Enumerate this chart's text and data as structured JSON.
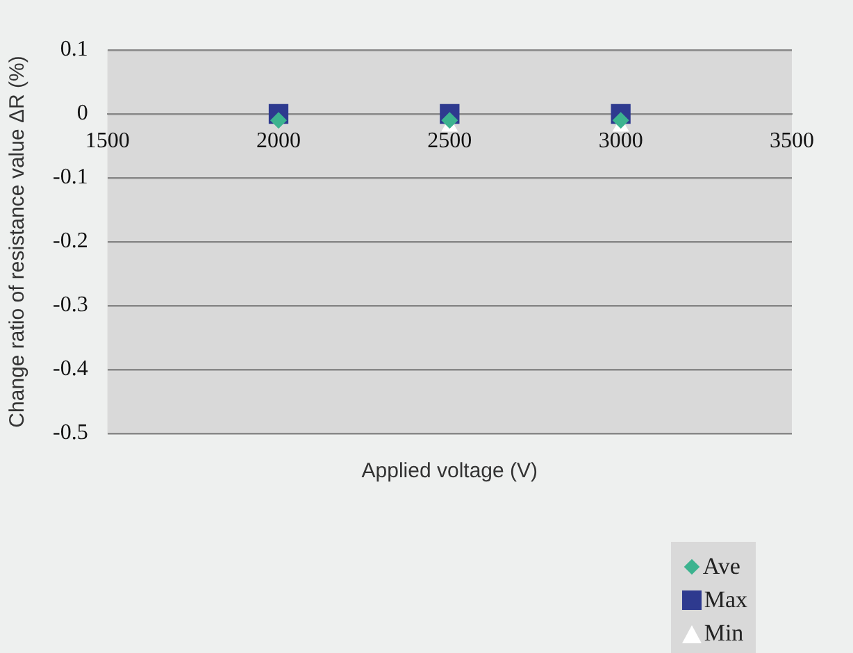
{
  "chart_data": {
    "type": "scatter",
    "xlabel": "Applied voltage (V)",
    "ylabel": "Change ratio of resistance value ΔR (%)",
    "x": [
      2000,
      2500,
      3000
    ],
    "series": [
      {
        "name": "Ave",
        "color": "#3cb38f",
        "marker": "diamond",
        "values": [
          -0.01,
          -0.01,
          -0.01
        ]
      },
      {
        "name": "Max",
        "color": "#2e3a8f",
        "marker": "square",
        "values": [
          0,
          0,
          0
        ]
      },
      {
        "name": "Min",
        "color": "#ffffff",
        "marker": "triangle",
        "values": [
          null,
          -0.02,
          -0.02
        ]
      }
    ],
    "xlim": [
      1500,
      3500
    ],
    "xticks": [
      1500,
      2000,
      2500,
      3000,
      3500
    ],
    "ylim": [
      -0.5,
      0.1
    ],
    "yticks": [
      0.1,
      0,
      -0.1,
      -0.2,
      -0.3,
      -0.4,
      -0.5
    ],
    "grid": "y",
    "legend": "bottom right"
  }
}
